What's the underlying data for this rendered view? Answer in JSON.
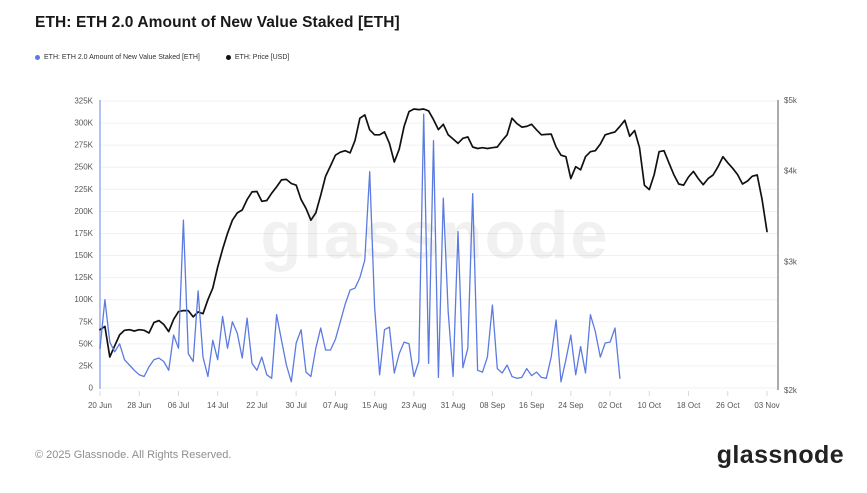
{
  "title": "ETH: ETH 2.0 Amount of New Value Staked [ETH]",
  "legend": {
    "items": [
      {
        "label": "ETH: ETH 2.0 Amount of New Value Staked [ETH]",
        "color": "#5c7be0"
      },
      {
        "label": "ETH: Price [USD]",
        "color": "#111111"
      }
    ]
  },
  "watermark": "glassnode",
  "footer": {
    "copyright": "© 2025 Glassnode. All Rights Reserved.",
    "brand": "glassnode"
  },
  "chart_data": {
    "type": "line",
    "title": "ETH: ETH 2.0 Amount of New Value Staked [ETH]",
    "x_tick_labels": [
      "20 Jun",
      "28 Jun",
      "06 Jul",
      "14 Jul",
      "22 Jul",
      "30 Jul",
      "07 Aug",
      "15 Aug",
      "23 Aug",
      "31 Aug",
      "08 Sep",
      "16 Sep",
      "24 Sep",
      "02 Oct",
      "10 Oct",
      "18 Oct",
      "26 Oct",
      "03 Nov"
    ],
    "days_per_tick": 8,
    "total_days": 136,
    "grid": "horizontal-only",
    "left_axis": {
      "unit": "ETH",
      "min": 0,
      "max": 325000,
      "tick_step": 25000,
      "tick_labels": [
        "0",
        "25K",
        "50K",
        "75K",
        "100K",
        "125K",
        "150K",
        "175K",
        "200K",
        "225K",
        "250K",
        "275K",
        "300K",
        "325K"
      ]
    },
    "right_axis": {
      "unit": "USD",
      "scale": "log",
      "min": 2000,
      "max": 5000,
      "tick_values": [
        2000,
        3000,
        4000,
        5000
      ],
      "tick_labels": [
        "$2k",
        "$3k",
        "$4k",
        "$5k"
      ]
    },
    "series": [
      {
        "name": "ETH: ETH 2.0 Amount of New Value Staked [ETH]",
        "color": "#5c7be0",
        "axis": "left",
        "start_day": 0,
        "values": [
          45000,
          100000,
          52000,
          41000,
          50000,
          32000,
          26000,
          20000,
          15000,
          13000,
          24000,
          32000,
          34000,
          30000,
          20000,
          60000,
          45000,
          190000,
          39000,
          30000,
          110000,
          35000,
          13000,
          54000,
          32000,
          81000,
          45000,
          75000,
          62000,
          34000,
          79000,
          28000,
          20000,
          35000,
          15000,
          11000,
          83000,
          54000,
          26000,
          7000,
          51000,
          66000,
          18000,
          13000,
          45000,
          68000,
          43000,
          43000,
          55000,
          75000,
          95000,
          111000,
          113000,
          125000,
          145000,
          245000,
          92000,
          15000,
          66000,
          69000,
          17000,
          39000,
          52000,
          50000,
          13000,
          30000,
          310000,
          28000,
          280000,
          12000,
          215000,
          86000,
          13000,
          177000,
          23000,
          45000,
          220000,
          20000,
          18000,
          35000,
          94000,
          22000,
          17000,
          26000,
          13000,
          11000,
          12000,
          22000,
          14000,
          18000,
          12000,
          11000,
          35000,
          77000,
          7000,
          32000,
          60000,
          15000,
          47000,
          17000,
          83000,
          64000,
          35000,
          51000,
          52000,
          68000,
          11000
        ]
      },
      {
        "name": "ETH: Price [USD]",
        "color": "#111111",
        "axis": "right",
        "start_day": 0,
        "values": [
          2420,
          2445,
          2220,
          2300,
          2380,
          2415,
          2420,
          2410,
          2420,
          2415,
          2395,
          2475,
          2490,
          2460,
          2405,
          2500,
          2562,
          2570,
          2570,
          2520,
          2560,
          2545,
          2660,
          2760,
          2950,
          3120,
          3280,
          3420,
          3500,
          3532,
          3650,
          3740,
          3745,
          3630,
          3640,
          3725,
          3800,
          3885,
          3890,
          3840,
          3820,
          3650,
          3550,
          3420,
          3500,
          3700,
          3930,
          4060,
          4200,
          4240,
          4260,
          4230,
          4400,
          4720,
          4770,
          4550,
          4480,
          4480,
          4520,
          4360,
          4110,
          4280,
          4600,
          4820,
          4860,
          4850,
          4860,
          4830,
          4700,
          4553,
          4630,
          4480,
          4420,
          4360,
          4430,
          4450,
          4310,
          4290,
          4300,
          4290,
          4300,
          4310,
          4400,
          4480,
          4720,
          4640,
          4590,
          4600,
          4630,
          4550,
          4480,
          4485,
          4490,
          4310,
          4200,
          4180,
          3900,
          4050,
          4010,
          4180,
          4246,
          4260,
          4350,
          4480,
          4500,
          4520,
          4600,
          4690,
          4460,
          4540,
          4300,
          3820,
          3767,
          3950,
          4246,
          4260,
          4100,
          3950,
          3835,
          3820,
          3920,
          3990,
          3900,
          3826,
          3900,
          3945,
          4050,
          4180,
          4100,
          4030,
          3950,
          3835,
          3870,
          3930,
          3945,
          3650,
          3300
        ]
      }
    ],
    "style": {
      "plot_left_border_color": "#b3c2f0",
      "right_axis_line_color": "#5a5a5a",
      "gridline_color": "#f1f1f2",
      "axis_text_color": "#565656",
      "tick_mark_color": "#d9d9d9",
      "watermark_color": "rgba(0,0,0,0.055)"
    }
  }
}
